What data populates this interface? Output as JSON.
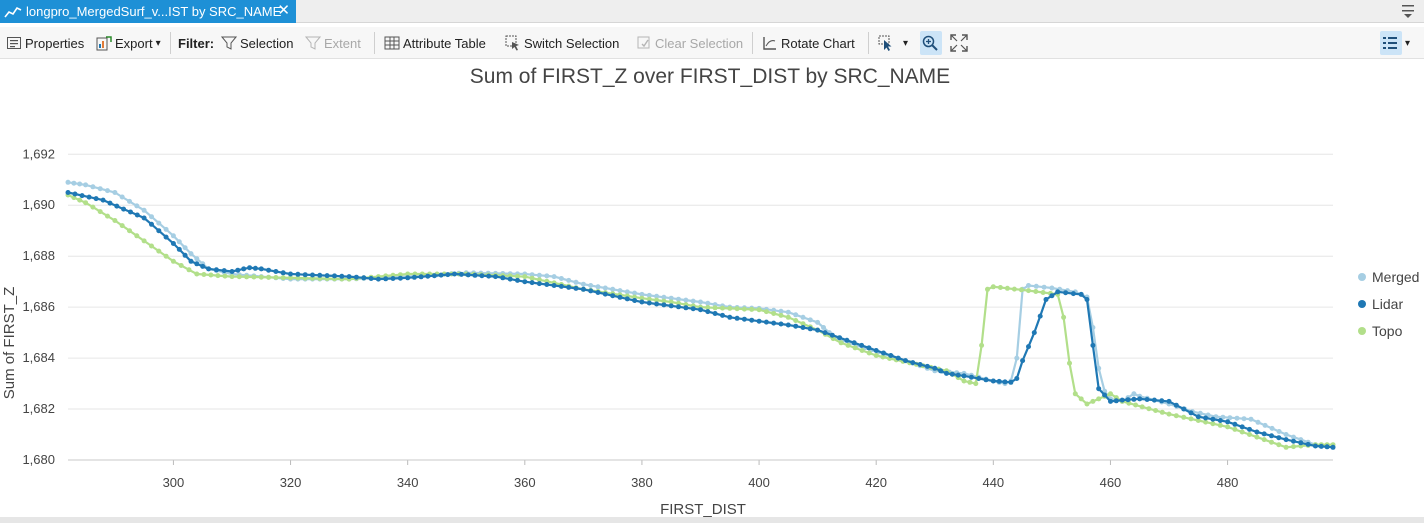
{
  "tab": {
    "title": "longpro_MergedSurf_v...IST by SRC_NAME",
    "close_glyph": "✕",
    "icon": "chart-icon"
  },
  "toolbar": {
    "properties_label": "Properties",
    "export_label": "Export",
    "filter_label": "Filter:",
    "selection_label": "Selection",
    "extent_label": "Extent",
    "attribute_table_label": "Attribute Table",
    "switch_selection_label": "Switch Selection",
    "clear_selection_label": "Clear Selection",
    "rotate_chart_label": "Rotate Chart",
    "dropdown_glyph": "▾"
  },
  "colors": {
    "tab_active": "#1e90d6",
    "merged": "#a6cee3",
    "lidar": "#1f78b4",
    "topo": "#b2df8a",
    "gridline": "#e6e6e6"
  },
  "chart_data": {
    "type": "line",
    "title": "Sum of FIRST_Z over FIRST_DIST by SRC_NAME",
    "xlabel": "FIRST_DIST",
    "ylabel": "Sum of FIRST_Z",
    "xlim": [
      282,
      498
    ],
    "ylim": [
      1680,
      1692.6
    ],
    "x_ticks": [
      "300",
      "320",
      "340",
      "360",
      "380",
      "400",
      "420",
      "440",
      "460",
      "480"
    ],
    "y_ticks": [
      "1,680",
      "1,682",
      "1,684",
      "1,686",
      "1,688",
      "1,690",
      "1,692"
    ],
    "grid": "horizontal",
    "legend_position": "right",
    "series": [
      {
        "name": "Merged",
        "color": "#a6cee3",
        "points": [
          [
            282,
            1690.9
          ],
          [
            285,
            1690.8
          ],
          [
            290,
            1690.5
          ],
          [
            295,
            1689.8
          ],
          [
            300,
            1688.8
          ],
          [
            303,
            1688.1
          ],
          [
            306,
            1687.5
          ],
          [
            310,
            1687.3
          ],
          [
            315,
            1687.2
          ],
          [
            320,
            1687.1
          ],
          [
            330,
            1687.1
          ],
          [
            340,
            1687.2
          ],
          [
            350,
            1687.35
          ],
          [
            360,
            1687.3
          ],
          [
            365,
            1687.2
          ],
          [
            370,
            1686.9
          ],
          [
            380,
            1686.5
          ],
          [
            390,
            1686.2
          ],
          [
            395,
            1686.0
          ],
          [
            400,
            1685.95
          ],
          [
            405,
            1685.8
          ],
          [
            410,
            1685.4
          ],
          [
            413,
            1684.8
          ],
          [
            418,
            1684.4
          ],
          [
            425,
            1683.9
          ],
          [
            430,
            1683.5
          ],
          [
            435,
            1683.4
          ],
          [
            440,
            1683.1
          ],
          [
            442,
            1683.0
          ],
          [
            443,
            1683.1
          ],
          [
            444,
            1684.0
          ],
          [
            445,
            1686.7
          ],
          [
            446,
            1686.85
          ],
          [
            450,
            1686.75
          ],
          [
            454,
            1686.6
          ],
          [
            456,
            1686.4
          ],
          [
            457,
            1685.2
          ],
          [
            458,
            1683.6
          ],
          [
            459,
            1682.7
          ],
          [
            460,
            1682.4
          ],
          [
            462,
            1682.3
          ],
          [
            464,
            1682.6
          ],
          [
            465,
            1682.5
          ],
          [
            470,
            1682.2
          ],
          [
            474,
            1681.9
          ],
          [
            478,
            1681.7
          ],
          [
            484,
            1681.6
          ],
          [
            490,
            1681.0
          ],
          [
            495,
            1680.6
          ],
          [
            498,
            1680.5
          ]
        ]
      },
      {
        "name": "Lidar",
        "color": "#1f78b4",
        "points": [
          [
            282,
            1690.5
          ],
          [
            288,
            1690.2
          ],
          [
            295,
            1689.5
          ],
          [
            300,
            1688.5
          ],
          [
            303,
            1687.8
          ],
          [
            306,
            1687.5
          ],
          [
            310,
            1687.4
          ],
          [
            313,
            1687.55
          ],
          [
            315,
            1687.5
          ],
          [
            320,
            1687.3
          ],
          [
            330,
            1687.2
          ],
          [
            335,
            1687.1
          ],
          [
            340,
            1687.15
          ],
          [
            348,
            1687.3
          ],
          [
            355,
            1687.2
          ],
          [
            360,
            1687.0
          ],
          [
            370,
            1686.7
          ],
          [
            380,
            1686.2
          ],
          [
            390,
            1685.9
          ],
          [
            395,
            1685.6
          ],
          [
            400,
            1685.45
          ],
          [
            405,
            1685.3
          ],
          [
            410,
            1685.1
          ],
          [
            415,
            1684.7
          ],
          [
            420,
            1684.3
          ],
          [
            425,
            1683.9
          ],
          [
            430,
            1683.6
          ],
          [
            432,
            1683.4
          ],
          [
            435,
            1683.3
          ],
          [
            440,
            1683.1
          ],
          [
            443,
            1683.05
          ],
          [
            444,
            1683.2
          ],
          [
            445,
            1683.9
          ],
          [
            447,
            1685.0
          ],
          [
            449,
            1686.3
          ],
          [
            451,
            1686.6
          ],
          [
            455,
            1686.5
          ],
          [
            456,
            1686.3
          ],
          [
            457,
            1684.5
          ],
          [
            458,
            1682.8
          ],
          [
            460,
            1682.3
          ],
          [
            462,
            1682.35
          ],
          [
            465,
            1682.4
          ],
          [
            470,
            1682.3
          ],
          [
            475,
            1681.7
          ],
          [
            480,
            1681.5
          ],
          [
            485,
            1681.1
          ],
          [
            490,
            1680.8
          ],
          [
            495,
            1680.55
          ],
          [
            498,
            1680.5
          ]
        ]
      },
      {
        "name": "Topo",
        "color": "#b2df8a",
        "points": [
          [
            282,
            1690.4
          ],
          [
            285,
            1690.1
          ],
          [
            290,
            1689.4
          ],
          [
            295,
            1688.6
          ],
          [
            300,
            1687.8
          ],
          [
            304,
            1687.3
          ],
          [
            310,
            1687.2
          ],
          [
            320,
            1687.15
          ],
          [
            330,
            1687.1
          ],
          [
            340,
            1687.3
          ],
          [
            350,
            1687.3
          ],
          [
            360,
            1687.2
          ],
          [
            370,
            1686.7
          ],
          [
            380,
            1686.35
          ],
          [
            385,
            1686.2
          ],
          [
            390,
            1686.0
          ],
          [
            400,
            1685.9
          ],
          [
            405,
            1685.6
          ],
          [
            410,
            1685.1
          ],
          [
            414,
            1684.6
          ],
          [
            420,
            1684.1
          ],
          [
            428,
            1683.7
          ],
          [
            432,
            1683.5
          ],
          [
            435,
            1683.1
          ],
          [
            437,
            1683.0
          ],
          [
            438,
            1684.5
          ],
          [
            439,
            1686.7
          ],
          [
            440,
            1686.8
          ],
          [
            446,
            1686.65
          ],
          [
            451,
            1686.5
          ],
          [
            452,
            1685.6
          ],
          [
            453,
            1683.8
          ],
          [
            454,
            1682.6
          ],
          [
            456,
            1682.2
          ],
          [
            458,
            1682.4
          ],
          [
            460,
            1682.6
          ],
          [
            462,
            1682.3
          ],
          [
            470,
            1681.8
          ],
          [
            480,
            1681.3
          ],
          [
            485,
            1680.9
          ],
          [
            490,
            1680.5
          ],
          [
            495,
            1680.6
          ],
          [
            498,
            1680.6
          ]
        ]
      }
    ]
  }
}
